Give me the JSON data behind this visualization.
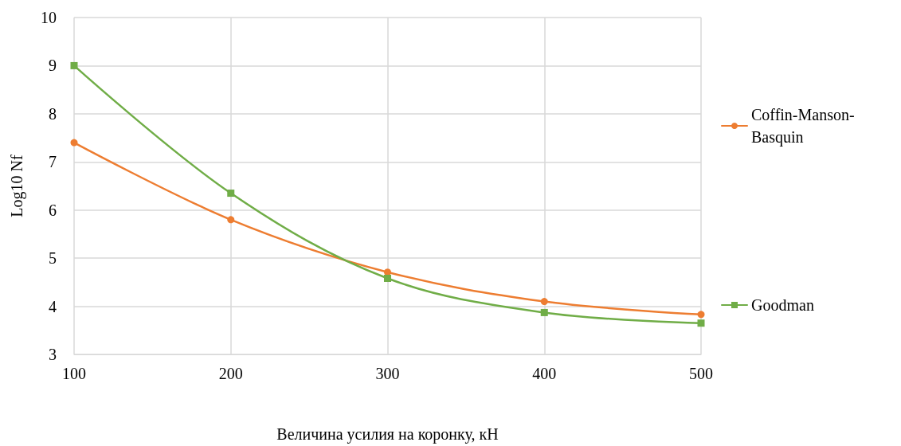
{
  "chart_data": {
    "type": "line",
    "xlabel": "Величина усилия на коронку, кН",
    "ylabel": "Log10 Nf",
    "x": [
      100,
      200,
      300,
      400,
      500
    ],
    "series": [
      {
        "name": "Coffin-Manson-Basquin",
        "color": "#ed7d31",
        "marker": "circle",
        "values": [
          7.4,
          5.8,
          4.71,
          4.1,
          3.83
        ]
      },
      {
        "name": "Goodman",
        "color": "#70ad47",
        "marker": "square",
        "values": [
          9.0,
          6.35,
          4.58,
          3.87,
          3.65
        ]
      }
    ],
    "xlim": [
      100,
      500
    ],
    "xticks": [
      100,
      200,
      300,
      400,
      500
    ],
    "ylim": [
      3,
      10
    ],
    "yticks": [
      3,
      4,
      5,
      6,
      7,
      8,
      9,
      10
    ],
    "grid": true,
    "legend": "right"
  }
}
